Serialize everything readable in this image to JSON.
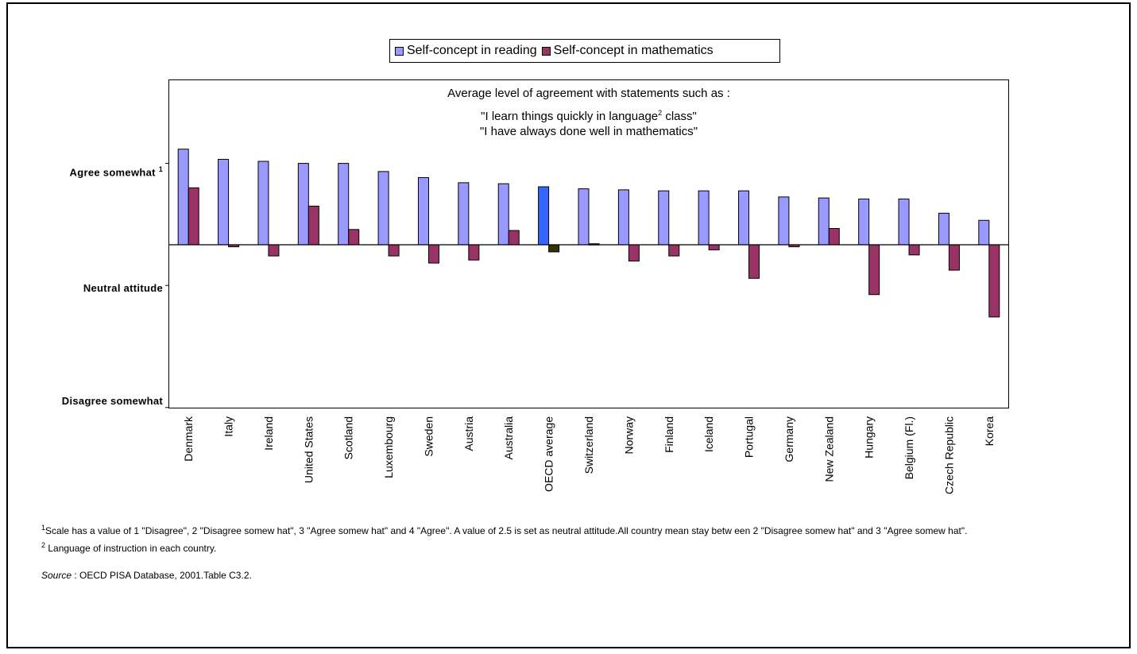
{
  "legend": {
    "reading_label": "Self-concept in reading",
    "math_label": "Self-concept in mathematics"
  },
  "subtitle": {
    "line1": "Average level of agreement with statements such as :",
    "line2_pre": "\"I learn things quickly in language",
    "line2_sup": "2",
    "line2_post": " class\"",
    "line3": "\"I have always done well in mathematics\""
  },
  "y_axis": {
    "agree_label": "Agree somewhat",
    "agree_sup": "1",
    "neutral_label": "Neutral attitude",
    "disagree_label": "Disagree somewhat"
  },
  "notes": {
    "note1_sup": "1",
    "note1": "Scale has a value of 1 \"Disagree\", 2 \"Disagree somew hat\", 3 \"Agree somew hat\" and 4 \"Agree\". A value of 2.5 is set as neutral attitude.All country mean stay betw een  2 \"Disagree somew hat\" and 3 \"Agree somew hat\".",
    "note2_sup": "2",
    "note2": " Language of instruction in each country.",
    "source_label": "Source",
    "source_text": " : OECD PISA Database, 2001.Table C3.2."
  },
  "chart_data": {
    "type": "bar",
    "categories": [
      "Denmark",
      "Italy",
      "Ireland",
      "United States",
      "Scotland",
      "Luxembourg",
      "Sweden",
      "Austria",
      "Australia",
      "OECD average",
      "Switzerland",
      "Norway",
      "Finland",
      "Iceland",
      "Portugal",
      "Germany",
      "New Zealand",
      "Hungary",
      "Belgium (Fl.)",
      "Czech Republic",
      "Korea"
    ],
    "series": [
      {
        "name": "Self-concept in reading",
        "values": [
          0.94,
          0.84,
          0.82,
          0.8,
          0.8,
          0.72,
          0.66,
          0.61,
          0.6,
          0.57,
          0.55,
          0.54,
          0.53,
          0.53,
          0.53,
          0.47,
          0.46,
          0.45,
          0.45,
          0.31,
          0.24
        ],
        "color": "#9999ff"
      },
      {
        "name": "Self-concept in mathematics",
        "values": [
          0.56,
          -0.02,
          -0.11,
          0.38,
          0.15,
          -0.11,
          -0.18,
          -0.15,
          0.14,
          -0.07,
          0.01,
          -0.16,
          -0.11,
          -0.05,
          -0.33,
          -0.02,
          0.16,
          -0.49,
          -0.1,
          -0.25,
          -0.71
        ],
        "color": "#993366"
      }
    ],
    "highlight": {
      "category": "OECD average",
      "reading_color": "#3366ff",
      "math_color": "#333300"
    },
    "ylim": [
      -1.6,
      1.6
    ],
    "y_ticks": [
      {
        "value": 0.8
      },
      {
        "value": -0.4
      },
      {
        "value": -1.6
      }
    ],
    "legend_position": "top"
  }
}
